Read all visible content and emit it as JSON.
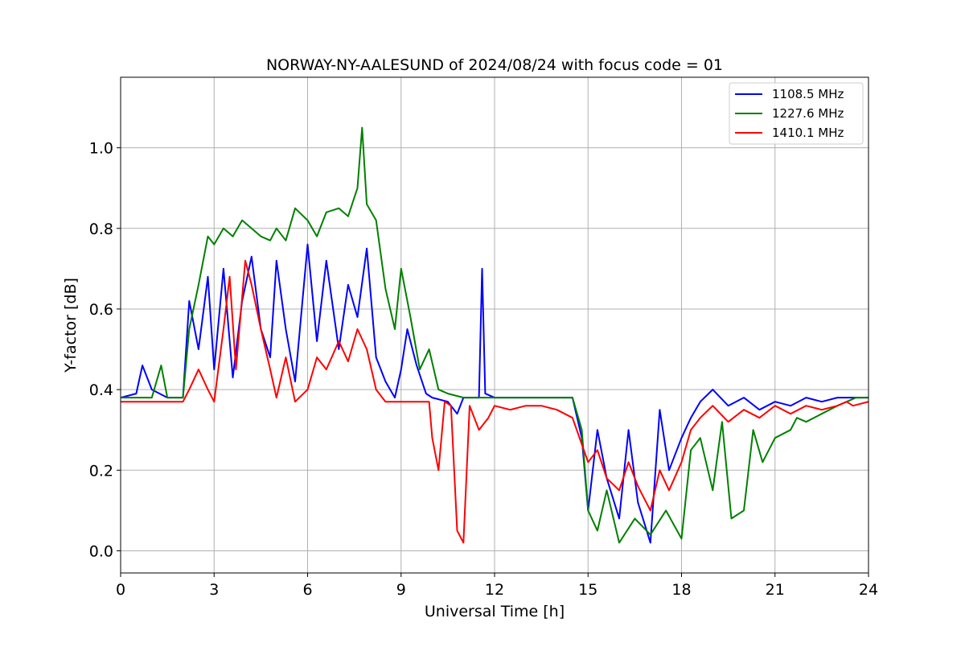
{
  "chart_data": {
    "type": "line",
    "title": "NORWAY-NY-AALESUND of 2024/08/24 with focus code = 01",
    "xlabel": "Universal Time [h]",
    "ylabel": "Y-factor [dB]",
    "xlim": [
      0,
      24
    ],
    "ylim": [
      -0.055,
      1.175
    ],
    "xticks": [
      0,
      3,
      6,
      9,
      12,
      15,
      18,
      21,
      24
    ],
    "yticks": [
      0.0,
      0.2,
      0.4,
      0.6,
      0.8,
      1.0
    ],
    "ytick_labels": [
      "0.0",
      "0.2",
      "0.4",
      "0.6",
      "0.8",
      "1.0"
    ],
    "grid": true,
    "legend_position": "top-right",
    "series": [
      {
        "name": "1108.5 MHz",
        "color": "#0000ff",
        "x": [
          0,
          0.5,
          0.7,
          1.0,
          1.5,
          2.0,
          2.2,
          2.5,
          2.8,
          3.0,
          3.3,
          3.6,
          3.9,
          4.2,
          4.5,
          4.8,
          5.0,
          5.3,
          5.6,
          6.0,
          6.3,
          6.6,
          7.0,
          7.3,
          7.6,
          7.9,
          8.2,
          8.5,
          8.8,
          9.0,
          9.2,
          9.5,
          9.8,
          10.0,
          10.5,
          10.8,
          11.0,
          11.5,
          11.6,
          11.7,
          12.0,
          13.0,
          14.0,
          14.5,
          14.8,
          15.0,
          15.3,
          15.6,
          16.0,
          16.3,
          16.6,
          17.0,
          17.3,
          17.6,
          18.0,
          18.3,
          18.6,
          19.0,
          19.5,
          20.0,
          20.5,
          21.0,
          21.5,
          22.0,
          22.5,
          23.0,
          23.5,
          24.0
        ],
        "y": [
          0.38,
          0.39,
          0.46,
          0.4,
          0.38,
          0.38,
          0.62,
          0.5,
          0.68,
          0.45,
          0.7,
          0.43,
          0.62,
          0.73,
          0.55,
          0.48,
          0.72,
          0.55,
          0.42,
          0.76,
          0.52,
          0.72,
          0.5,
          0.66,
          0.58,
          0.75,
          0.48,
          0.42,
          0.38,
          0.45,
          0.55,
          0.46,
          0.39,
          0.38,
          0.37,
          0.34,
          0.38,
          0.38,
          0.7,
          0.39,
          0.38,
          0.38,
          0.38,
          0.38,
          0.28,
          0.1,
          0.3,
          0.18,
          0.08,
          0.3,
          0.12,
          0.02,
          0.35,
          0.2,
          0.28,
          0.33,
          0.37,
          0.4,
          0.36,
          0.38,
          0.35,
          0.37,
          0.36,
          0.38,
          0.37,
          0.38,
          0.38,
          0.38
        ]
      },
      {
        "name": "1227.6 MHz",
        "color": "#008000",
        "x": [
          0,
          0.5,
          1.0,
          1.3,
          1.5,
          2.0,
          2.2,
          2.5,
          2.8,
          3.0,
          3.3,
          3.6,
          3.9,
          4.2,
          4.5,
          4.8,
          5.0,
          5.3,
          5.6,
          6.0,
          6.3,
          6.6,
          7.0,
          7.3,
          7.6,
          7.75,
          7.9,
          8.2,
          8.5,
          8.8,
          9.0,
          9.3,
          9.6,
          9.9,
          10.2,
          10.5,
          11.0,
          12.0,
          13.0,
          14.0,
          14.5,
          14.8,
          15.0,
          15.3,
          15.6,
          16.0,
          16.5,
          17.0,
          17.5,
          18.0,
          18.3,
          18.6,
          19.0,
          19.3,
          19.6,
          20.0,
          20.3,
          20.6,
          21.0,
          21.5,
          21.7,
          22.0,
          22.5,
          23.0,
          23.3,
          23.6,
          24.0
        ],
        "y": [
          0.38,
          0.38,
          0.38,
          0.46,
          0.38,
          0.38,
          0.55,
          0.66,
          0.78,
          0.76,
          0.8,
          0.78,
          0.82,
          0.8,
          0.78,
          0.77,
          0.8,
          0.77,
          0.85,
          0.82,
          0.78,
          0.84,
          0.85,
          0.83,
          0.9,
          1.05,
          0.86,
          0.82,
          0.65,
          0.55,
          0.7,
          0.58,
          0.45,
          0.5,
          0.4,
          0.39,
          0.38,
          0.38,
          0.38,
          0.38,
          0.38,
          0.3,
          0.1,
          0.05,
          0.15,
          0.02,
          0.08,
          0.04,
          0.1,
          0.03,
          0.25,
          0.28,
          0.15,
          0.32,
          0.08,
          0.1,
          0.3,
          0.22,
          0.28,
          0.3,
          0.33,
          0.32,
          0.34,
          0.36,
          0.37,
          0.38,
          0.38
        ]
      },
      {
        "name": "1410.1 MHz",
        "color": "#ff0000",
        "x": [
          0,
          0.5,
          1.0,
          1.5,
          2.0,
          2.2,
          2.5,
          2.8,
          3.0,
          3.3,
          3.5,
          3.7,
          4.0,
          4.2,
          4.5,
          4.8,
          5.0,
          5.3,
          5.6,
          6.0,
          6.3,
          6.6,
          7.0,
          7.3,
          7.6,
          7.9,
          8.2,
          8.5,
          8.8,
          9.0,
          9.5,
          9.9,
          10.0,
          10.2,
          10.4,
          10.6,
          10.8,
          11.0,
          11.2,
          11.5,
          11.8,
          12.0,
          12.5,
          13.0,
          13.5,
          14.0,
          14.5,
          15.0,
          15.3,
          15.6,
          16.0,
          16.3,
          16.6,
          17.0,
          17.3,
          17.6,
          18.0,
          18.3,
          18.6,
          19.0,
          19.5,
          20.0,
          20.5,
          21.0,
          21.5,
          22.0,
          22.5,
          23.0,
          23.3,
          23.5,
          24.0
        ],
        "y": [
          0.37,
          0.37,
          0.37,
          0.37,
          0.37,
          0.4,
          0.45,
          0.4,
          0.37,
          0.55,
          0.68,
          0.45,
          0.72,
          0.66,
          0.55,
          0.45,
          0.38,
          0.48,
          0.37,
          0.4,
          0.48,
          0.45,
          0.52,
          0.47,
          0.55,
          0.5,
          0.4,
          0.37,
          0.37,
          0.37,
          0.37,
          0.37,
          0.28,
          0.2,
          0.37,
          0.36,
          0.05,
          0.02,
          0.36,
          0.3,
          0.33,
          0.36,
          0.35,
          0.36,
          0.36,
          0.35,
          0.33,
          0.22,
          0.25,
          0.18,
          0.15,
          0.22,
          0.16,
          0.1,
          0.2,
          0.15,
          0.22,
          0.3,
          0.33,
          0.36,
          0.32,
          0.35,
          0.33,
          0.36,
          0.34,
          0.36,
          0.35,
          0.36,
          0.37,
          0.36,
          0.37
        ]
      }
    ]
  }
}
